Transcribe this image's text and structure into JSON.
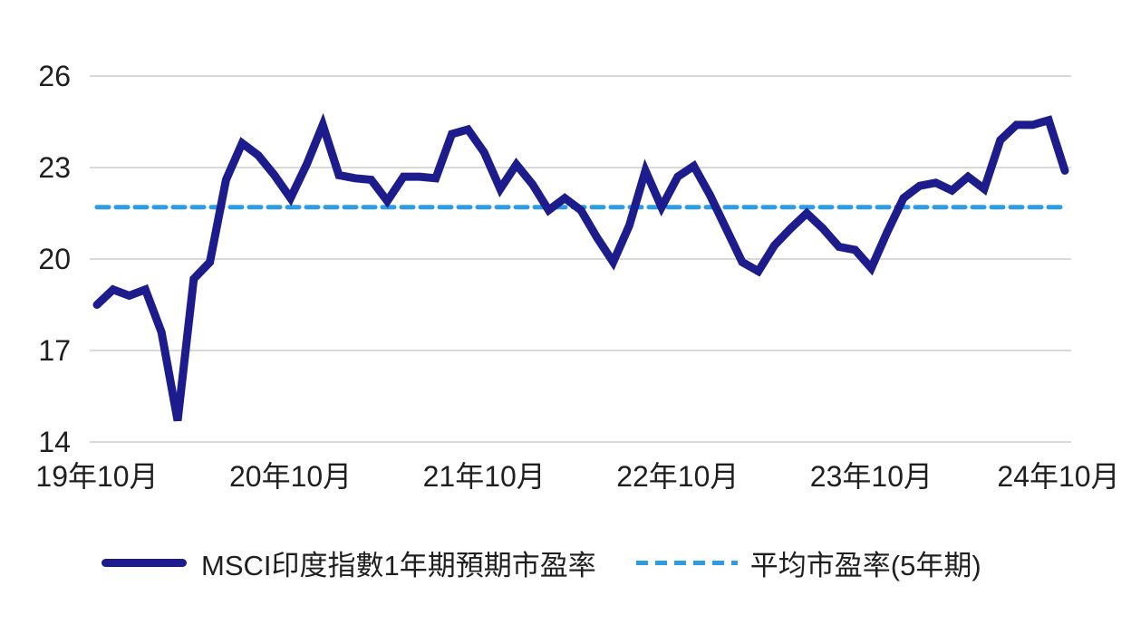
{
  "chart_data": {
    "type": "line",
    "title": "",
    "grid": "horizontal",
    "legend_position": "bottom",
    "y_axis": {
      "range": [
        14,
        26
      ],
      "ticks": [
        26,
        23,
        20,
        17,
        14
      ]
    },
    "x_axis": {
      "tick_labels": [
        "19年10月",
        "20年10月",
        "21年10月",
        "22年10月",
        "23年10月",
        "24年10月"
      ],
      "tick_point_indices": [
        0,
        12,
        24,
        36,
        48,
        60
      ]
    },
    "series": [
      {
        "name": "MSCI印度指數1年期預期市盈率",
        "style": "solid",
        "color": "#1C1C8C",
        "values": [
          18.5,
          19.0,
          18.8,
          19.0,
          17.6,
          14.7,
          19.35,
          19.9,
          22.6,
          23.8,
          23.4,
          22.75,
          22.0,
          23.1,
          24.4,
          22.75,
          22.65,
          22.6,
          21.9,
          22.7,
          22.7,
          22.65,
          24.1,
          24.25,
          23.5,
          22.3,
          23.1,
          22.45,
          21.6,
          22.0,
          21.6,
          20.7,
          19.9,
          21.1,
          22.9,
          21.7,
          22.7,
          23.05,
          22.1,
          21.0,
          19.9,
          19.6,
          20.45,
          21.0,
          21.5,
          21.0,
          20.4,
          20.3,
          19.7,
          20.9,
          22.0,
          22.4,
          22.5,
          22.25,
          22.7,
          22.3,
          23.9,
          24.4,
          24.4,
          24.55,
          22.9
        ]
      },
      {
        "name": "平均市盈率(5年期)",
        "style": "dashed",
        "color": "#2E9BE5",
        "value": 21.7
      }
    ]
  },
  "colors": {
    "background": "#FFFFFF",
    "gridline": "#D9D9D9",
    "axis_text": "#1F1F1F"
  }
}
